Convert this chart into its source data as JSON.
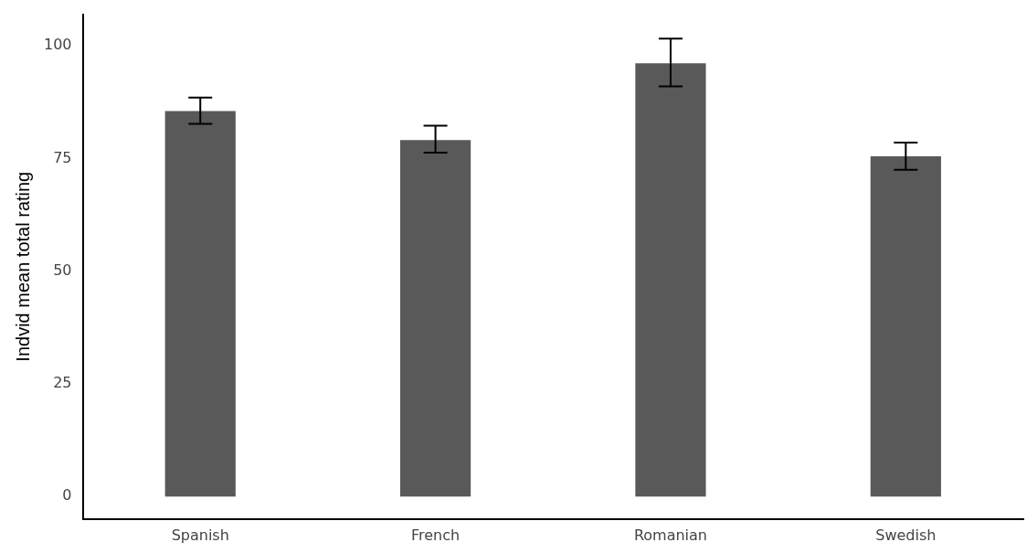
{
  "chart_data": {
    "type": "bar",
    "ylabel": "Indvid mean total rating",
    "categories": [
      "Spanish",
      "French",
      "Romanian",
      "Swedish"
    ],
    "values": [
      85.5,
      79.1,
      96.1,
      75.5
    ],
    "errors": [
      [
        82.7,
        88.5
      ],
      [
        76.3,
        82.3
      ],
      [
        91,
        101.6
      ],
      [
        72.5,
        78.5
      ]
    ],
    "color": "#595959",
    "ylim": [
      -5,
      107
    ],
    "yticks": [
      0,
      25,
      50,
      75,
      100
    ],
    "grid": false,
    "legend": false
  }
}
